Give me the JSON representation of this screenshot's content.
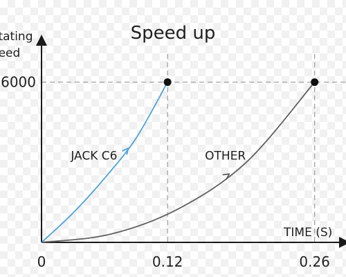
{
  "chart_data": {
    "type": "line",
    "title": "Speed up",
    "ylabel_lines": [
      "Rotating",
      "Speed"
    ],
    "xlabel": "TIME (S)",
    "x_ticks": [
      "0",
      "0.12",
      "0.26"
    ],
    "y_ticks": [
      "6000"
    ],
    "xlim": [
      0,
      0.28
    ],
    "ylim": [
      0,
      7000
    ],
    "grid": "dashed reference lines at marked points",
    "series": [
      {
        "name": "JACK C6",
        "color": "#4ba3d6",
        "x": [
          0,
          0.03,
          0.06,
          0.09,
          0.12
        ],
        "y": [
          0,
          1100,
          2400,
          3900,
          6000
        ],
        "label_pos": [
          0.05,
          3100
        ]
      },
      {
        "name": "OTHER",
        "color": "#5f5f5f",
        "x": [
          0,
          0.065,
          0.13,
          0.195,
          0.26
        ],
        "y": [
          0,
          300,
          1250,
          3000,
          6000
        ],
        "label_pos": [
          0.175,
          3100
        ]
      }
    ]
  }
}
